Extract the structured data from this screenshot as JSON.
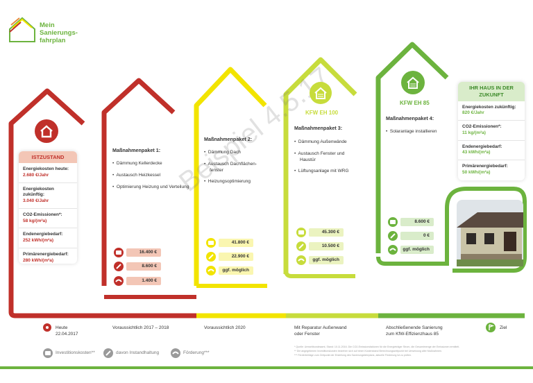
{
  "logo": {
    "line1": "Mein",
    "line2": "Sanierungs-",
    "line3": "fahrplan"
  },
  "watermark": "Beispiel 4.5.17",
  "istzustand": {
    "badge": "ISTZUSTAND",
    "rows": [
      {
        "label": "Energiekosten heute:",
        "value": "2.680 €/Jahr"
      },
      {
        "label": "Energiekosten zukünftig:",
        "value": "3.040 €/Jahr"
      },
      {
        "label": "CO2-Emissionen*:",
        "value": "58 kg/(m²a)"
      },
      {
        "label": "Endenergiebedarf:",
        "value": "252 kWh/(m²a)"
      },
      {
        "label": "Primärenergiebedarf:",
        "value": "280 kWh/(m²a)"
      }
    ]
  },
  "pakete": [
    {
      "title": "Maßnahmenpaket 1:",
      "items": [
        "Dämmung Kellerdecke",
        "Austausch Heizkessel",
        "Optimierung Heizung und Verteilung"
      ],
      "investition": "16.400 €",
      "instandhaltung": "8.600 €",
      "foerderung": "1.400 €",
      "color": "#c0302a",
      "pill": "#f3c6b6"
    },
    {
      "title": "Maßnahmenpaket 2:",
      "items": [
        "Dämmung Dach",
        "Austausch Dachflächen-fenster",
        "Heizungsoptimierung"
      ],
      "investition": "41.800 €",
      "instandhaltung": "22.900 €",
      "foerderung": "ggf. möglich",
      "color": "#f2e400",
      "pill": "#faf6b0"
    },
    {
      "title": "Maßnahmenpaket 3:",
      "items": [
        "Dämmung Außenwände",
        "Austausch Fenster und Haustür",
        "Lüftungsanlage mit WRG"
      ],
      "investition": "45.300 €",
      "instandhaltung": "10.500 €",
      "foerderung": "ggf. möglich",
      "color": "#c7dc3c",
      "pill": "#ebf3c0",
      "kfw": "KFW EH 100"
    },
    {
      "title": "Maßnahmenpaket 4:",
      "items": [
        "Solaranlage installieren"
      ],
      "investition": "8.600 €",
      "instandhaltung": "0 €",
      "foerderung": "ggf. möglich",
      "color": "#6cb33e",
      "pill": "#d9ecca",
      "kfw": "KFW EH 85"
    }
  ],
  "zukunft": {
    "title": "IHR HAUS IN DER ZUKUNFT",
    "rows": [
      {
        "label": "Energiekosten zukünftig:",
        "value": "820 €/Jahr"
      },
      {
        "label": "CO2-Emissionen*:",
        "value": "11 kg/(m²a)"
      },
      {
        "label": "Endenergiebedarf:",
        "value": "43 kWh/(m²a)"
      },
      {
        "label": "Primärenergiebedarf:",
        "value": "50 kWh/(m²a)"
      }
    ]
  },
  "timeline": {
    "heute_line1": "Heute",
    "heute_line2": "22.04.2017",
    "t1": "Voraussichtlich 2017 – 2018",
    "t2": "Voraussichtlich 2020",
    "t3_line1": "Mit Reparatur Außenwand",
    "t3_line2": "oder Fenster",
    "t4_line1": "Abschließenende Sanierung",
    "t4_line2": "zum KfW-Effizienzhaus 85",
    "ziel": "Ziel"
  },
  "legend": {
    "investition": "Investitionskosten**",
    "instandhaltung": "davon Instandhaltung",
    "foerderung": "Förderung***"
  },
  "footnotes": [
    "*    Quelle: Umweltbundesamt, Stand: 10.11.2016. Die CO2-Emissionsfaktoren für die Energieträger Strom, die Gesamtmenge der Emissionen ermittelt.",
    "**   Die angegebenen Investitionskosten beziehen sich auf einen Kostenstand Berechnungszeitpunkt bei Umsetzung aller Maßnahmen.",
    "***  Förderbeträge zum Zeitpunkt der Erstellung des Sanierungsfahrplans, aktuelle Förderung ist zu prüfen."
  ],
  "colors": {
    "red": "#c0302a",
    "yellow": "#f2e400",
    "lime": "#c7dc3c",
    "green": "#6cb33e"
  }
}
